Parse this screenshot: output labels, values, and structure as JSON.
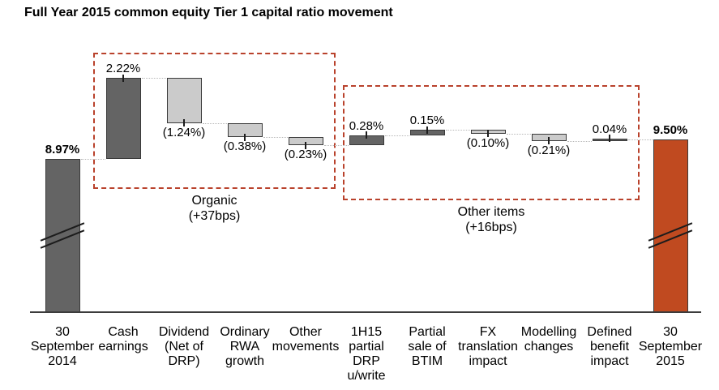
{
  "page": {
    "title": "Full Year 2015 common equity Tier 1 capital ratio movement"
  },
  "colors": {
    "dark_bar": "#646464",
    "light_bar": "#cbcbcb",
    "end_bar": "#c04a20",
    "bar_border": "#3a3a3a",
    "group_box": "#b9422c",
    "connector": "#b8b8b8",
    "axis": "#3c3c3c",
    "break_mark": "#1c1c1c",
    "text": "#000000"
  },
  "chart_data": {
    "type": "bar",
    "subtype": "waterfall",
    "title": "Full Year 2015 common equity Tier 1 capital ratio movement",
    "xlabel": "",
    "ylabel": "",
    "axis_break_on_totals": true,
    "start_value_pct": 8.97,
    "end_value_pct": 9.5,
    "categories": [
      "30 September 2014",
      "Cash earnings",
      "Dividend (Net of DRP)",
      "Ordinary RWA growth",
      "Other movements",
      "1H15 partial DRP u/write",
      "Partial sale of BTIM",
      "FX translation impact",
      "Modelling changes",
      "Defined benefit impact",
      "30 September 2015"
    ],
    "items": [
      {
        "category": "30 September 2014",
        "category_lines": [
          "30",
          "September",
          "2014"
        ],
        "role": "start",
        "value": 8.97,
        "display": "8.97%",
        "shade": "dark"
      },
      {
        "category": "Cash earnings",
        "category_lines": [
          "Cash",
          "earnings"
        ],
        "role": "increase",
        "value": 2.22,
        "display": "2.22%",
        "shade": "dark"
      },
      {
        "category": "Dividend (Net of DRP)",
        "category_lines": [
          "Dividend",
          "(Net of",
          "DRP)"
        ],
        "role": "decrease",
        "value": -1.24,
        "display": "(1.24%)",
        "shade": "light"
      },
      {
        "category": "Ordinary RWA growth",
        "category_lines": [
          "Ordinary",
          "RWA",
          "growth"
        ],
        "role": "decrease",
        "value": -0.38,
        "display": "(0.38%)",
        "shade": "light"
      },
      {
        "category": "Other movements",
        "category_lines": [
          "Other",
          "movements"
        ],
        "role": "decrease",
        "value": -0.23,
        "display": "(0.23%)",
        "shade": "light"
      },
      {
        "category": "1H15 partial DRP u/write",
        "category_lines": [
          "1H15",
          "partial",
          "DRP",
          "u/write"
        ],
        "role": "increase",
        "value": 0.28,
        "display": "0.28%",
        "shade": "dark"
      },
      {
        "category": "Partial sale of BTIM",
        "category_lines": [
          "Partial",
          "sale of",
          "BTIM"
        ],
        "role": "increase",
        "value": 0.15,
        "display": "0.15%",
        "shade": "dark"
      },
      {
        "category": "FX translation impact",
        "category_lines": [
          "FX",
          "translation",
          "impact"
        ],
        "role": "decrease",
        "value": -0.1,
        "display": "(0.10%)",
        "shade": "light"
      },
      {
        "category": "Modelling changes",
        "category_lines": [
          "Modelling",
          "changes"
        ],
        "role": "decrease",
        "value": -0.21,
        "display": "(0.21%)",
        "shade": "light"
      },
      {
        "category": "Defined benefit impact",
        "category_lines": [
          "Defined",
          "benefit",
          "impact"
        ],
        "role": "increase",
        "value": 0.04,
        "display": "0.04%",
        "shade": "dark"
      },
      {
        "category": "30 September 2015",
        "category_lines": [
          "30",
          "September",
          "2015"
        ],
        "role": "end",
        "value": 9.5,
        "display": "9.50%",
        "shade": "orange"
      }
    ],
    "groups": [
      {
        "name": "organic",
        "label": "Organic",
        "sublabel": "(+37bps)",
        "first_item": "Cash earnings",
        "last_item": "Other movements"
      },
      {
        "name": "other-items",
        "label": "Other items",
        "sublabel": "(+16bps)",
        "first_item": "1H15 partial DRP u/write",
        "last_item": "Defined benefit impact"
      }
    ]
  }
}
